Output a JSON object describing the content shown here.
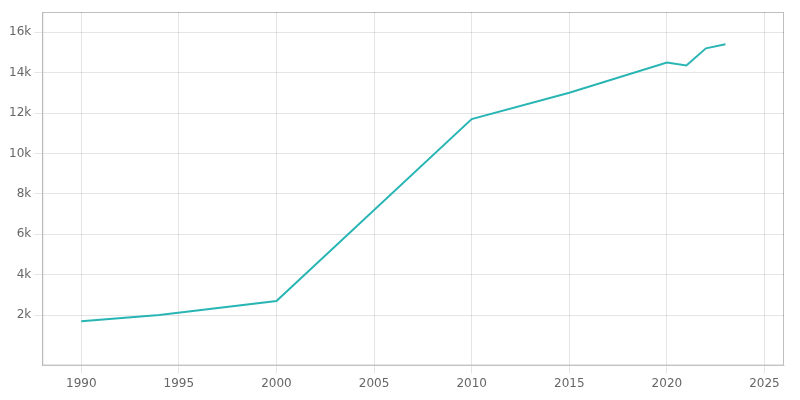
{
  "chart_data": {
    "type": "line",
    "x": [
      1990,
      1994,
      2000,
      2010,
      2015,
      2020,
      2021,
      2022,
      2023
    ],
    "values": [
      1700,
      2000,
      2700,
      11700,
      13000,
      14500,
      14350,
      15200,
      15400
    ],
    "color": "#2ab5b5",
    "xlim": [
      1988,
      2026
    ],
    "ylim": [
      -500,
      17000
    ],
    "xticks": [
      1990,
      1995,
      2000,
      2005,
      2010,
      2015,
      2020,
      2025
    ],
    "yticks": [
      {
        "value": 2000,
        "label": "2k"
      },
      {
        "value": 4000,
        "label": "4k"
      },
      {
        "value": 6000,
        "label": "6k"
      },
      {
        "value": 8000,
        "label": "8k"
      },
      {
        "value": 10000,
        "label": "10k"
      },
      {
        "value": 12000,
        "label": "12k"
      },
      {
        "value": 14000,
        "label": "14k"
      },
      {
        "value": 16000,
        "label": "16k"
      }
    ],
    "grid": true
  }
}
